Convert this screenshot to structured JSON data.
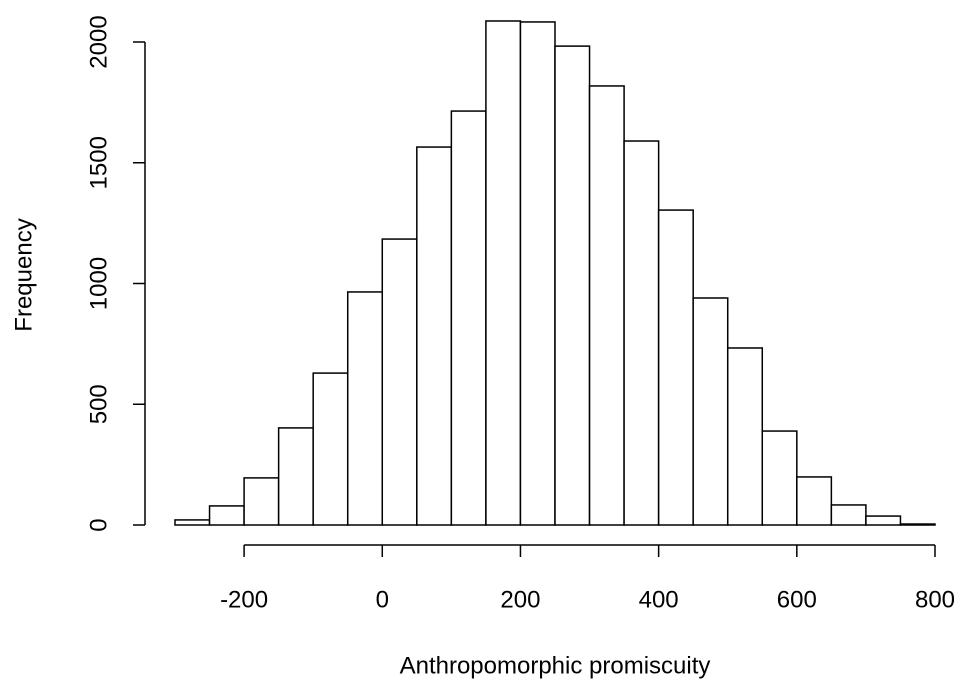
{
  "chart_data": {
    "type": "histogram",
    "x_label": "Anthropomorphic promiscuity",
    "y_label": "Frequency",
    "bins": [
      -300,
      -250,
      -200,
      -150,
      -100,
      -50,
      0,
      50,
      100,
      150,
      200,
      250,
      300,
      350,
      400,
      450,
      500,
      550,
      600,
      650,
      700,
      750,
      800
    ],
    "values": [
      21,
      79,
      195,
      402,
      629,
      965,
      1184,
      1565,
      1714,
      2087,
      2083,
      1983,
      1818,
      1590,
      1304,
      940,
      733,
      389,
      199,
      83,
      37,
      4
    ],
    "color": "#ffffff",
    "xlim": [
      -300,
      800
    ],
    "xticks": [
      -200,
      0,
      200,
      400,
      600,
      800
    ],
    "ylim": [
      0,
      2000
    ],
    "yticks": [
      0,
      500,
      1000,
      1500,
      2000
    ]
  }
}
